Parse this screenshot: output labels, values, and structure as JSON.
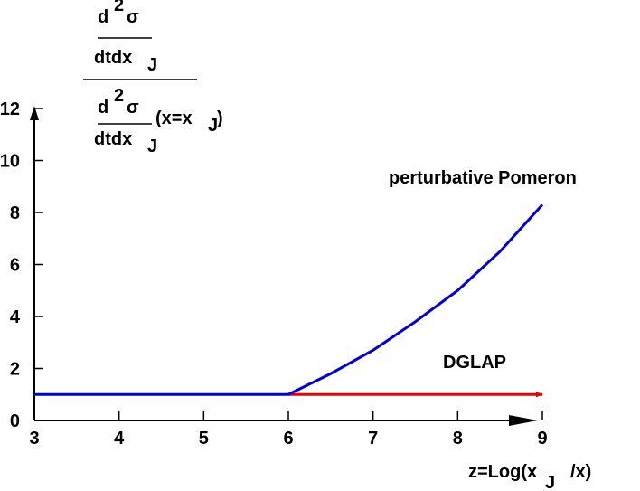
{
  "chart_data": {
    "type": "line",
    "ylabel_parts": [
      "d",
      "2",
      "σ",
      "dtdx",
      "J",
      "d",
      "2",
      "σ",
      "dtdx",
      "J",
      "(x=x",
      "J",
      ")"
    ],
    "xlabel_parts": [
      "z=Log(x",
      "J",
      "/x)"
    ],
    "series": [
      {
        "name": "perturbative Pomeron",
        "color": "#0000dd",
        "x": [
          3,
          6,
          6.5,
          7,
          7.5,
          8,
          8.5,
          9
        ],
        "values": [
          1,
          1,
          1.8,
          2.7,
          3.8,
          5.0,
          6.5,
          8.3
        ]
      },
      {
        "name": "DGLAP",
        "color": "#ee0000",
        "x": [
          6,
          9
        ],
        "values": [
          1,
          1
        ]
      }
    ],
    "xlim": [
      3,
      9
    ],
    "xticks": [
      3,
      4,
      5,
      6,
      7,
      8,
      9
    ],
    "ylim": [
      0,
      12
    ],
    "yticks": [
      0,
      2,
      4,
      6,
      8,
      10,
      12
    ]
  }
}
